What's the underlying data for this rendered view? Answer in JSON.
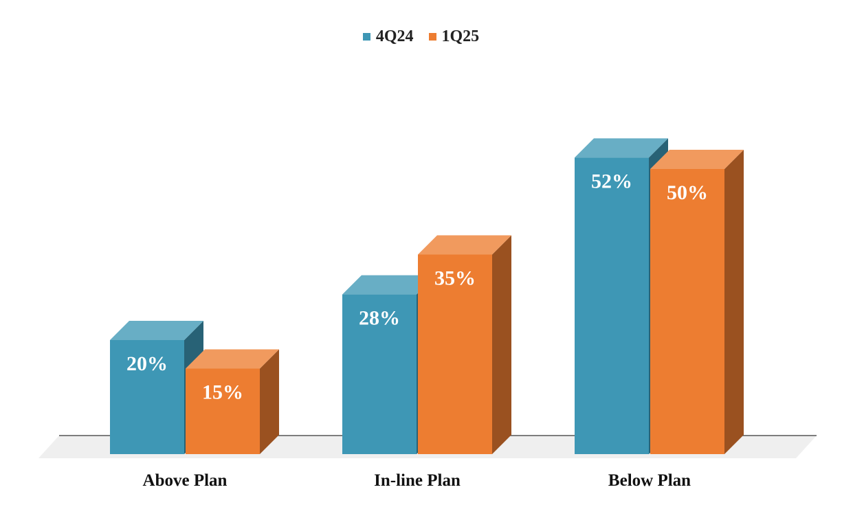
{
  "chart_data": {
    "type": "bar",
    "title": "",
    "xlabel": "",
    "ylabel": "",
    "categories": [
      "Above Plan",
      "In-line Plan",
      "Below Plan"
    ],
    "series": [
      {
        "name": "4Q24",
        "values": [
          20,
          28,
          52
        ],
        "labels": [
          "20%",
          "28%",
          "52%"
        ],
        "color": "#3E97B5"
      },
      {
        "name": "1Q25",
        "values": [
          15,
          35,
          50
        ],
        "labels": [
          "15%",
          "35%",
          "50%"
        ],
        "color": "#ED7D31"
      }
    ],
    "ylim": [
      0,
      55
    ],
    "grid": false,
    "legend": "top-center",
    "style": "3d-column"
  }
}
